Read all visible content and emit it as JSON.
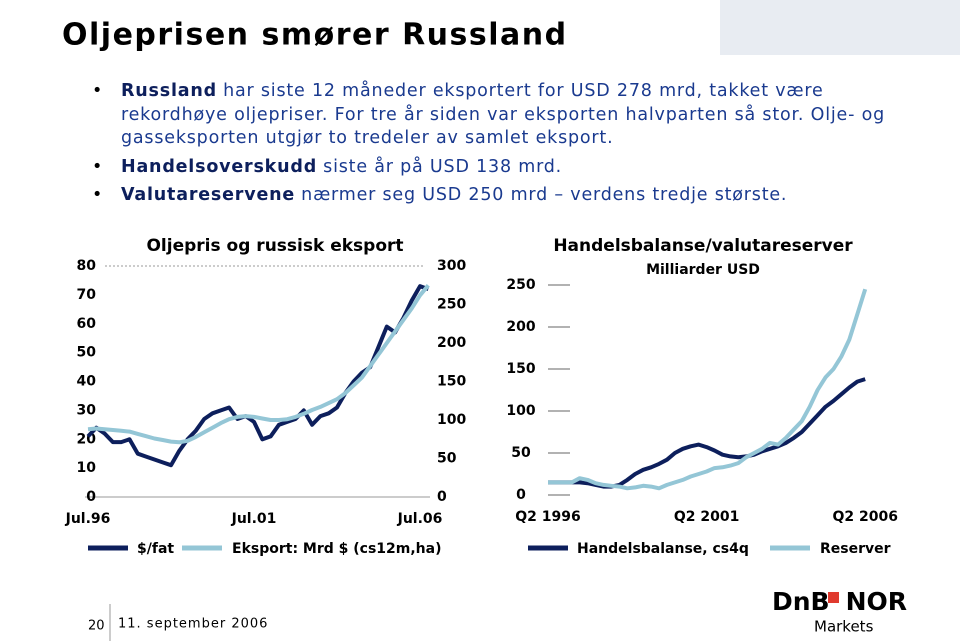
{
  "header": {
    "title": "Oljeprisen smører Russland"
  },
  "bullets": [
    {
      "bold": "Russland",
      "text": "har siste 12 måneder eksportert for USD 278 mrd, takket være rekordhøye oljepriser. For tre år siden var eksporten halvparten så stor. Olje- og gasseksporten utgjør to tredeler av samlet eksport."
    },
    {
      "bold": "Handelsoverskudd",
      "text": "siste år på USD 138 mrd."
    },
    {
      "bold": "Valutareservene",
      "text": "nærmer seg USD 250 mrd – verdens tredje største."
    }
  ],
  "chart_data": [
    {
      "type": "line",
      "title": "Oljepris og russisk eksport",
      "categories": [
        "Jul.96",
        null,
        null,
        null,
        null,
        null,
        null,
        null,
        null,
        null,
        null,
        null,
        null,
        null,
        null,
        null,
        null,
        null,
        null,
        null,
        "Jul.01",
        null,
        null,
        null,
        null,
        null,
        null,
        null,
        null,
        null,
        null,
        null,
        null,
        null,
        null,
        null,
        null,
        null,
        null,
        null,
        "Jul.06",
        null
      ],
      "series": [
        {
          "name": "$/fat",
          "color": "#0d1f5c",
          "values": [
            21,
            24,
            22,
            19,
            19,
            20,
            15,
            14,
            13,
            12,
            11,
            16,
            20,
            23,
            27,
            29,
            30,
            31,
            27,
            28,
            26,
            20,
            21,
            25,
            26,
            27,
            30,
            25,
            28,
            29,
            31,
            36,
            40,
            43,
            45,
            52,
            59,
            57,
            62,
            68,
            73,
            72
          ]
        },
        {
          "name": "Eksport: Mrd $ (cs12m,ha)",
          "color": "#94c6d6",
          "axis": "y2",
          "values": [
            88,
            89,
            88,
            87,
            86,
            85,
            82,
            79,
            76,
            74,
            72,
            71,
            73,
            78,
            84,
            90,
            96,
            101,
            104,
            105,
            104,
            102,
            100,
            100,
            101,
            104,
            108,
            113,
            117,
            122,
            127,
            135,
            145,
            155,
            170,
            185,
            200,
            215,
            230,
            245,
            262,
            275
          ]
        }
      ],
      "ylim": [
        0,
        80
      ],
      "yticks": [
        0,
        10,
        20,
        30,
        40,
        50,
        60,
        70,
        80
      ],
      "y2lim": [
        0,
        300
      ],
      "y2ticks": [
        0,
        50,
        100,
        150,
        200,
        250,
        300
      ]
    },
    {
      "type": "line",
      "title": "Handelsbalanse/valutareserver",
      "subtitle": "Milliarder USD",
      "categories": [
        "Q2 1996",
        null,
        null,
        null,
        null,
        null,
        null,
        null,
        null,
        null,
        null,
        null,
        null,
        null,
        null,
        null,
        null,
        null,
        null,
        null,
        "Q2 2001",
        null,
        null,
        null,
        null,
        null,
        null,
        null,
        null,
        null,
        null,
        null,
        null,
        null,
        null,
        null,
        null,
        null,
        null,
        null,
        "Q2 2006"
      ],
      "series": [
        {
          "name": "Handelsbalanse, cs4q",
          "color": "#0d1f5c",
          "values": [
            15,
            15,
            15,
            15,
            15,
            14,
            12,
            10,
            10,
            12,
            18,
            25,
            30,
            33,
            37,
            42,
            50,
            55,
            58,
            60,
            57,
            53,
            48,
            46,
            45,
            46,
            48,
            52,
            55,
            58,
            62,
            68,
            75,
            85,
            95,
            105,
            112,
            120,
            128,
            135,
            138
          ]
        },
        {
          "name": "Reserver",
          "color": "#94c6d6",
          "values": [
            15,
            15,
            15,
            15,
            20,
            18,
            14,
            12,
            11,
            10,
            8,
            9,
            11,
            10,
            8,
            12,
            15,
            18,
            22,
            25,
            28,
            32,
            33,
            35,
            38,
            45,
            50,
            55,
            62,
            60,
            68,
            78,
            88,
            105,
            125,
            140,
            150,
            165,
            185,
            215,
            245
          ]
        }
      ],
      "ylim": [
        0,
        250
      ],
      "yticks": [
        0,
        50,
        100,
        150,
        200,
        250
      ]
    }
  ],
  "footer": {
    "page": "20",
    "date": "11. september 2006",
    "brand_a": "DnB",
    "brand_b": "NOR",
    "brand_sub": "Markets"
  }
}
